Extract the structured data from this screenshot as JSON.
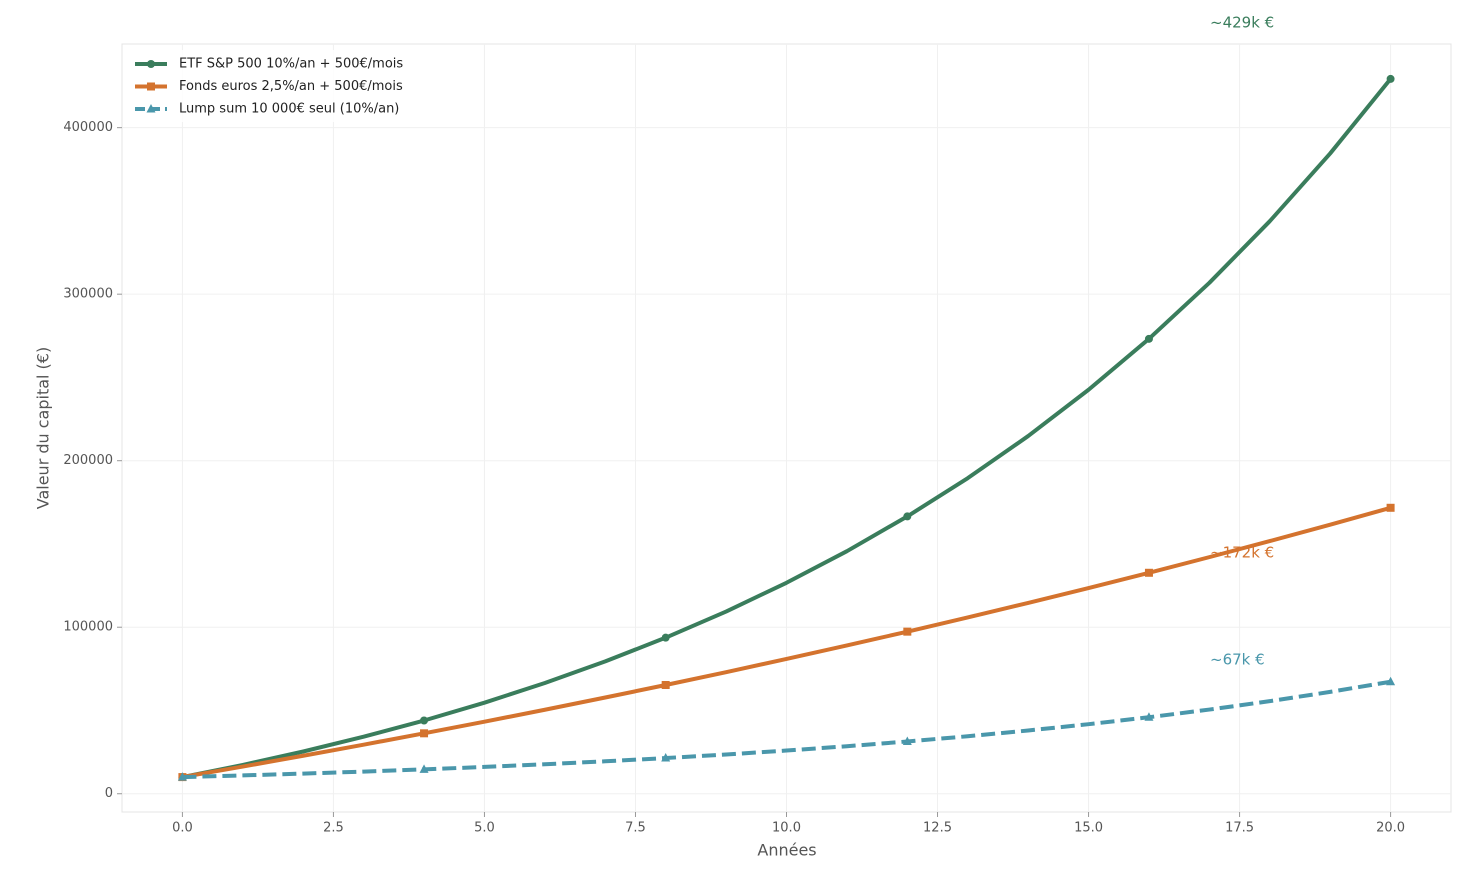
{
  "chart_data": {
    "type": "line",
    "xlabel": "Années",
    "ylabel": "Valeur du capital (€)",
    "x": [
      0,
      1,
      2,
      3,
      4,
      5,
      6,
      7,
      8,
      9,
      10,
      11,
      12,
      13,
      14,
      15,
      16,
      17,
      18,
      19,
      20
    ],
    "series": [
      {
        "name": "ETF S&P 500 10%/an + 500€/mois",
        "color": "#3a7d5c",
        "marker": "circle",
        "dash": false,
        "values": [
          10000,
          17320,
          25373,
          34230,
          43976,
          54697,
          66490,
          79463,
          93729,
          109421,
          126682,
          145670,
          166556,
          189531,
          214803,
          242601,
          273181,
          306819,
          343820,
          384521,
          429275
        ]
      },
      {
        "name": "Fonds euros 2,5%/an + 500€/mois",
        "color": "#d4732e",
        "marker": "square",
        "dash": false,
        "values": [
          10000,
          16331,
          22820,
          29472,
          36289,
          43277,
          50440,
          57783,
          65309,
          73023,
          80929,
          89033,
          97340,
          105854,
          114582,
          123527,
          132696,
          142094,
          151728,
          161602,
          171722
        ]
      },
      {
        "name": "Lump sum 10 000€ seul (10%/an)",
        "color": "#4a97ab",
        "marker": "triangle",
        "dash": true,
        "values": [
          10000,
          11000,
          12100,
          13310,
          14641,
          16105,
          17716,
          19487,
          21436,
          23579,
          25937,
          28531,
          31384,
          34523,
          37975,
          41772,
          45950,
          50545,
          55599,
          61159,
          67275
        ]
      }
    ],
    "markevery": 4,
    "annotations": [
      "~429k €",
      "~172k €",
      "~67k €"
    ],
    "xlim": [
      -1,
      21
    ],
    "xticks": [
      {
        "value": 0,
        "label": "0.0"
      },
      2.5,
      {
        "value": 5,
        "label": "5.0"
      },
      {
        "value": 7.5,
        "label": "7.5"
      },
      {
        "value": 10,
        "label": "10.0"
      },
      12.5,
      {
        "value": 15,
        "label": "15.0"
      },
      17.5,
      {
        "value": 20,
        "label": "20.0"
      }
    ],
    "ylim": [
      -10964,
      450239
    ],
    "yticks": [
      0,
      100000,
      200000,
      300000,
      400000
    ],
    "grid": true,
    "legend": "upper left"
  }
}
